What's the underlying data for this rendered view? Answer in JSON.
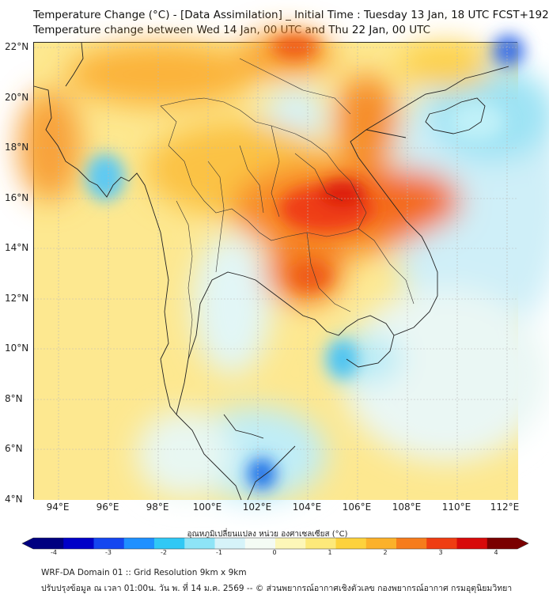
{
  "title": {
    "line1": "Temperature Change (°C) - [Data Assimilation] _ Initial Time : Tuesday 13 Jan, 18 UTC FCST+192",
    "line2": "Temperature change between Wed 14 Jan, 00 UTC and Thu 22 Jan, 00 UTC"
  },
  "axes": {
    "lat_labels": [
      "22°N",
      "20°N",
      "18°N",
      "16°N",
      "14°N",
      "12°N",
      "10°N",
      "8°N",
      "6°N",
      "4°N"
    ],
    "lon_labels": [
      "94°E",
      "96°E",
      "98°E",
      "100°E",
      "102°E",
      "104°E",
      "106°E",
      "108°E",
      "110°E",
      "112°E"
    ],
    "lat_range": [
      4,
      22.2
    ],
    "lon_range": [
      93,
      112.5
    ]
  },
  "colorbar": {
    "title": "อุณหภูมิเปลี่ยนแปลง หน่วย องศาเซลเซียส (°C)",
    "ticks": [
      "-4",
      "-3",
      "-2",
      "-1",
      "0",
      "1",
      "2",
      "3",
      "4"
    ],
    "range": [
      -4,
      4
    ],
    "colors": [
      "#000080",
      "#0000c8",
      "#1446f0",
      "#1e90ff",
      "#30c8f5",
      "#8ee4f7",
      "#d6f3f9",
      "#f4fbf4",
      "#fdf7b8",
      "#fde97a",
      "#fdd23c",
      "#fbb12a",
      "#f67c1c",
      "#ef3d12",
      "#d80a0a",
      "#7a0000"
    ]
  },
  "footer": {
    "line1": "WRF-DA Domain 01 :: Grid Resolution 9km x 9km",
    "line2": "ปรับปรุงข้อมูล ณ เวลา 01:00น. วัน พ. ที่ 14 ม.ค. 2569 -- © ส่วนพยากรณ์อากาศเชิงตัวเลข กองพยากรณ์อากาศ กรมอุตุนิยมวิทยา"
  }
}
